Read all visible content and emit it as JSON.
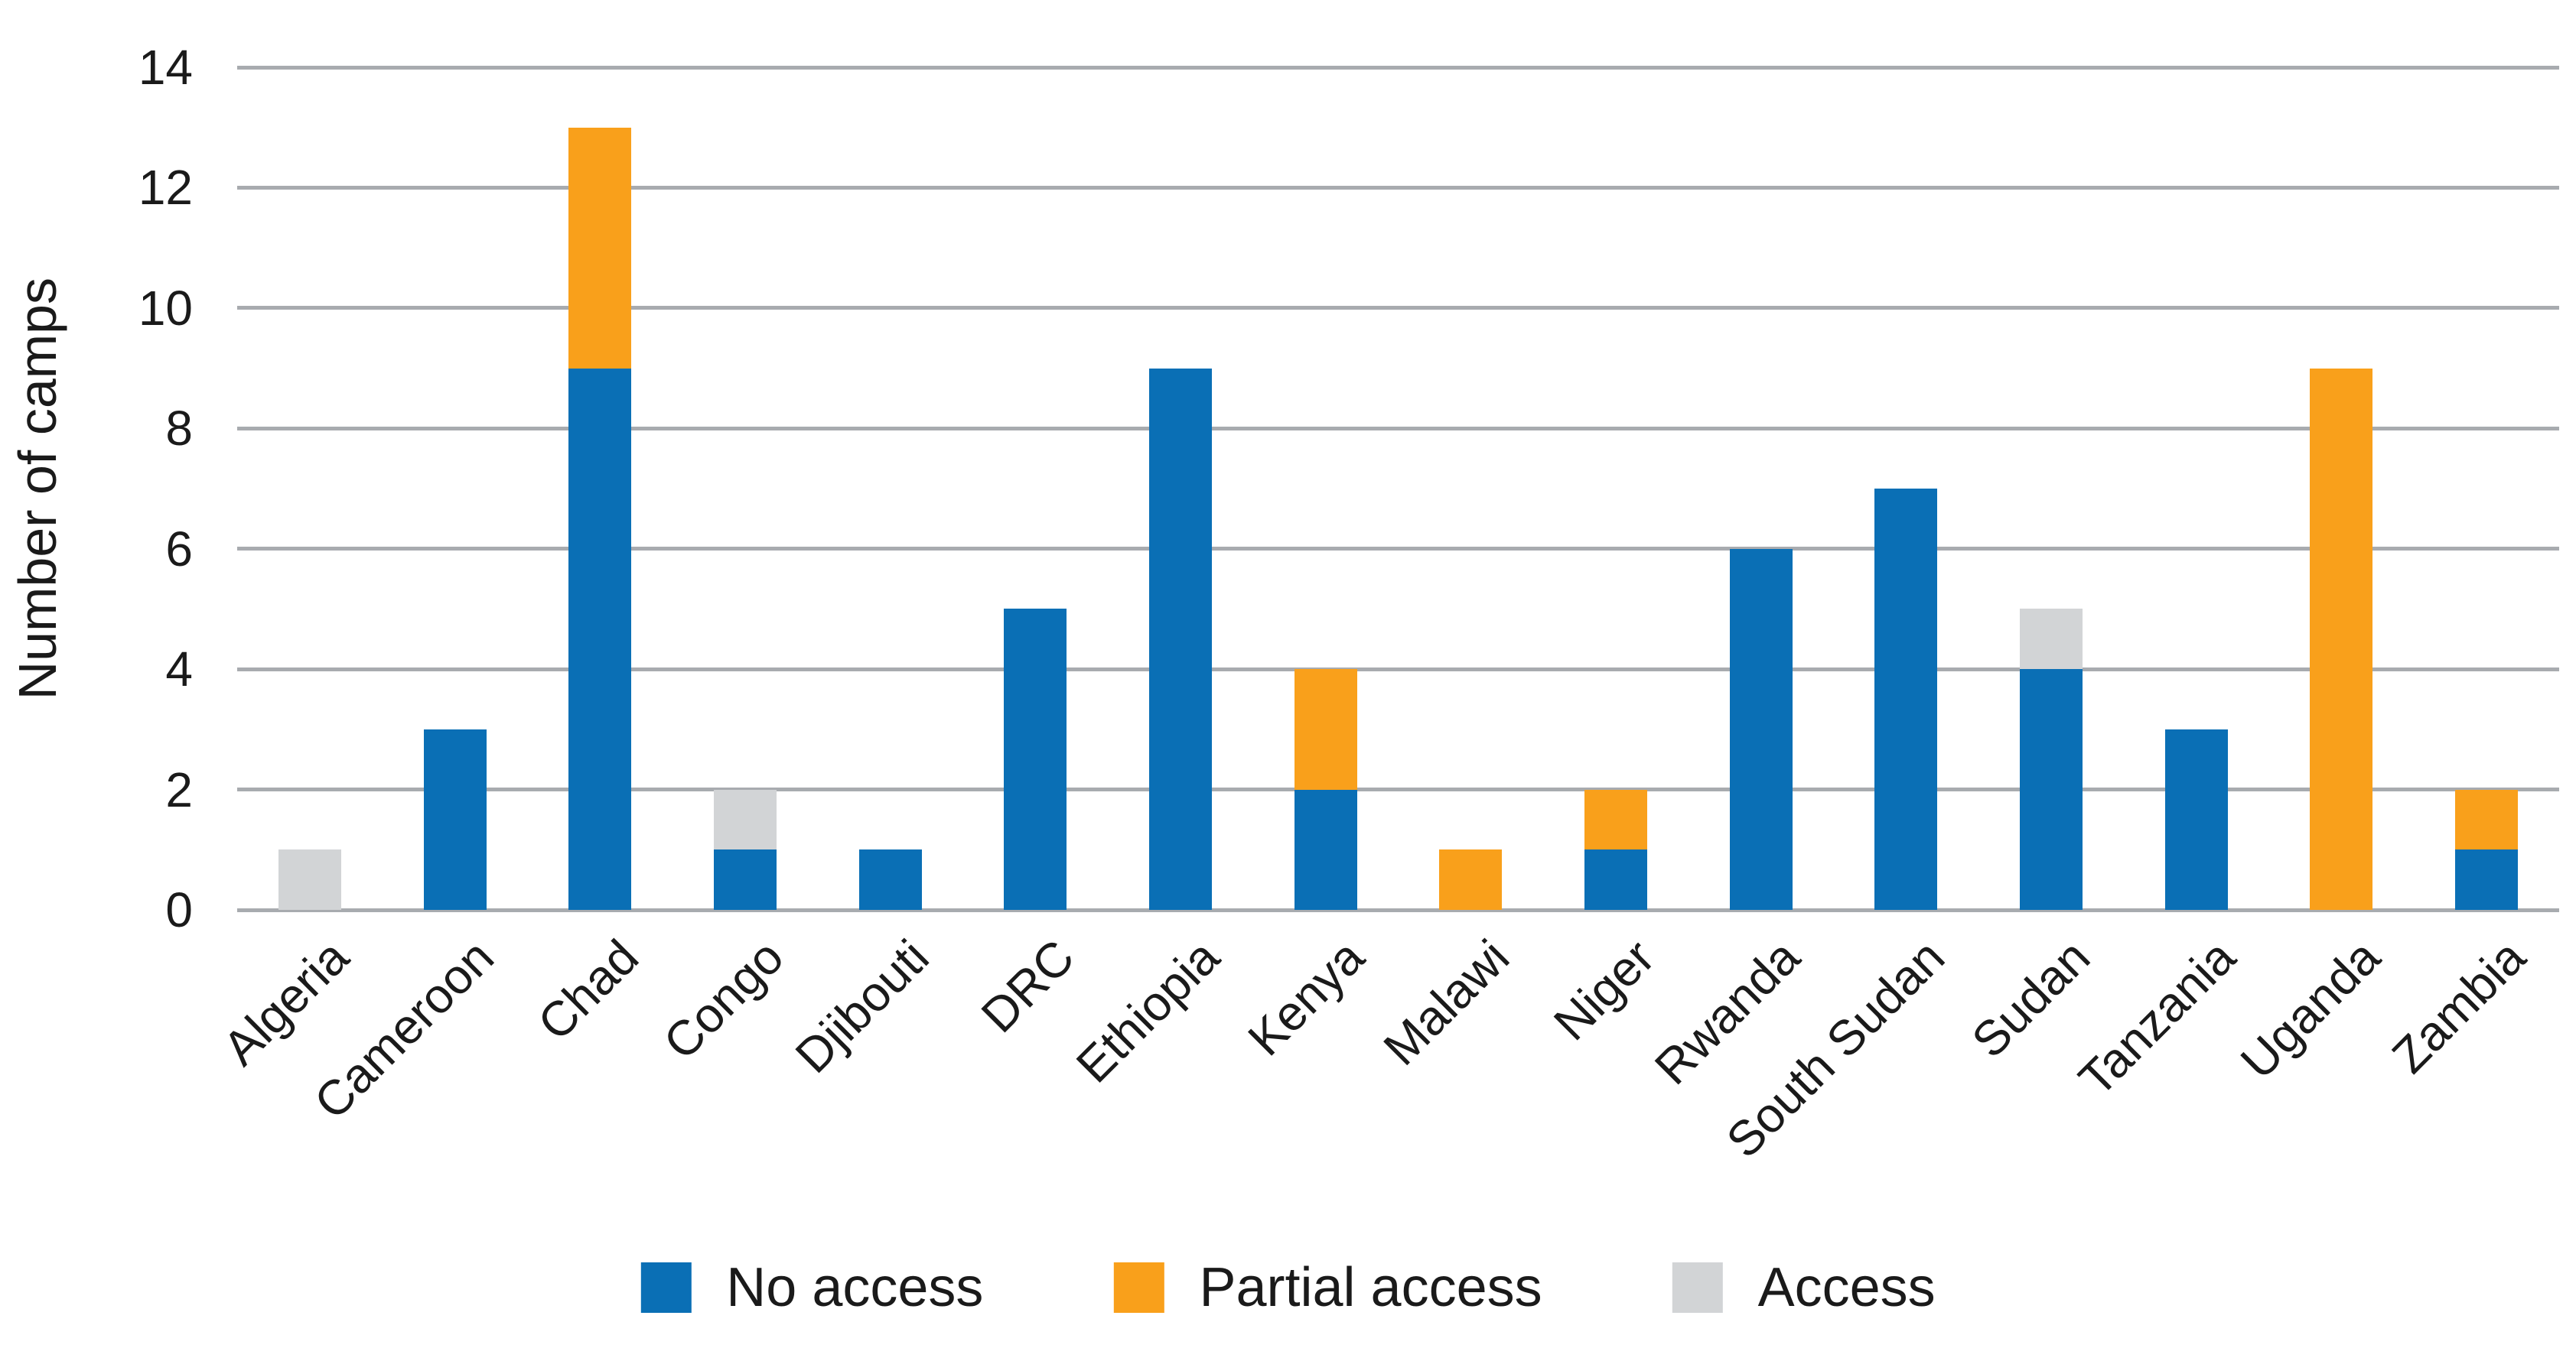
{
  "chart_data": {
    "type": "bar",
    "stacked": true,
    "title": "",
    "xlabel": "",
    "ylabel": "Number of camps",
    "ylim": [
      0,
      14
    ],
    "ytick_step": 2,
    "grid": "horizontal",
    "legend_position": "bottom-center",
    "categories": [
      "Algeria",
      "Cameroon",
      "Chad",
      "Congo",
      "Djibouti",
      "DRC",
      "Ethiopia",
      "Kenya",
      "Malawi",
      "Niger",
      "Rwanda",
      "South Sudan",
      "Sudan",
      "Tanzania",
      "Uganda",
      "Zambia"
    ],
    "series": [
      {
        "name": "No access",
        "color": "#0a6fb5",
        "values": [
          0,
          3,
          9,
          1,
          1,
          5,
          9,
          2,
          0,
          1,
          6,
          7,
          4,
          3,
          0,
          1
        ]
      },
      {
        "name": "Partial access",
        "color": "#f9a01b",
        "values": [
          0,
          0,
          4,
          0,
          0,
          0,
          0,
          2,
          1,
          1,
          0,
          0,
          0,
          0,
          9,
          1
        ]
      },
      {
        "name": "Access",
        "color": "#d2d4d6",
        "values": [
          1,
          0,
          0,
          1,
          0,
          0,
          0,
          0,
          0,
          0,
          0,
          0,
          1,
          0,
          0,
          0
        ]
      }
    ]
  },
  "colors": {
    "background": "#ffffff",
    "gridline": "#a8abaf",
    "text": "#1a1a1a"
  }
}
